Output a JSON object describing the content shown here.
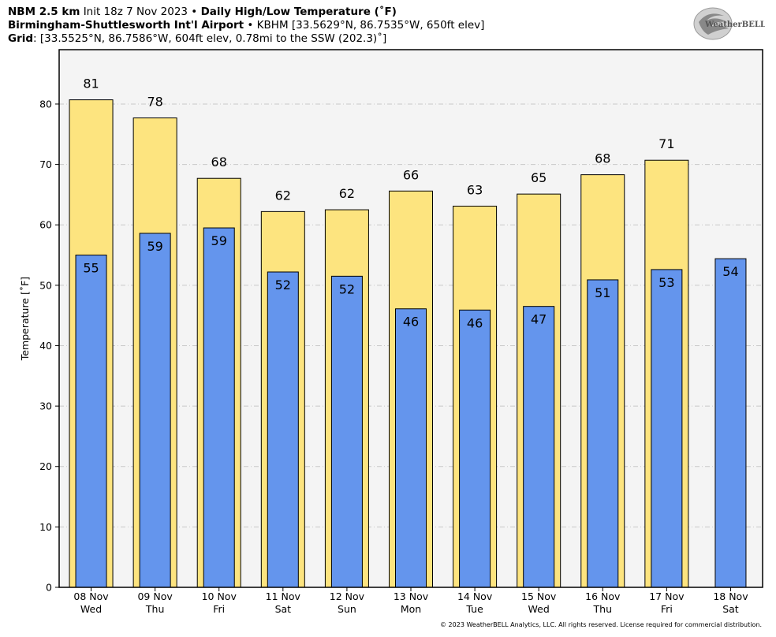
{
  "header": {
    "model": "NBM 2.5 km",
    "init": "Init 18z 7 Nov 2023",
    "sep1": "•",
    "product": "Daily High/Low Temperature (˚F)",
    "station_name": "Birmingham-Shuttlesworth Int'l Airport",
    "sep2": "•",
    "station_info": "KBHM [33.5629°N, 86.7535°W, 650ft elev]",
    "grid_label": "Grid",
    "grid_info": ": [33.5525°N, 86.7586°W, 604ft elev, 0.78mi to the SSW (202.3)˚]"
  },
  "logo": {
    "text": "WeatherBELL",
    "icon": "weatherbell-swirl-logo"
  },
  "footer": "© 2023 WeatherBELL Analytics, LLC. All rights reserved. License required for commercial distribution.",
  "colors": {
    "high": "#fde47f",
    "low": "#6495ed",
    "plot_bg": "#f4f4f4",
    "grid": "#c8c8c8"
  },
  "chart_data": {
    "type": "bar",
    "ylabel": "Temperature [˚F]",
    "ylim": [
      0,
      89
    ],
    "yticks": [
      0,
      10,
      20,
      30,
      40,
      50,
      60,
      70,
      80
    ],
    "grid": true,
    "categories": [
      {
        "date": "08 Nov",
        "day": "Wed"
      },
      {
        "date": "09 Nov",
        "day": "Thu"
      },
      {
        "date": "10 Nov",
        "day": "Fri"
      },
      {
        "date": "11 Nov",
        "day": "Sat"
      },
      {
        "date": "12 Nov",
        "day": "Sun"
      },
      {
        "date": "13 Nov",
        "day": "Mon"
      },
      {
        "date": "14 Nov",
        "day": "Tue"
      },
      {
        "date": "15 Nov",
        "day": "Wed"
      },
      {
        "date": "16 Nov",
        "day": "Thu"
      },
      {
        "date": "17 Nov",
        "day": "Fri"
      },
      {
        "date": "18 Nov",
        "day": "Sat"
      }
    ],
    "series": [
      {
        "key": "high",
        "values": [
          80.7,
          77.7,
          67.7,
          62.2,
          62.5,
          65.6,
          63.1,
          65.1,
          68.3,
          70.7,
          null
        ],
        "labels": [
          "81",
          "78",
          "68",
          "62",
          "62",
          "66",
          "63",
          "65",
          "68",
          "71",
          ""
        ]
      },
      {
        "key": "low",
        "values": [
          55.0,
          58.6,
          59.5,
          52.2,
          51.5,
          46.1,
          45.9,
          46.5,
          50.9,
          52.6,
          54.4
        ],
        "labels": [
          "55",
          "59",
          "59",
          "52",
          "52",
          "46",
          "46",
          "47",
          "51",
          "53",
          "54"
        ]
      }
    ]
  }
}
